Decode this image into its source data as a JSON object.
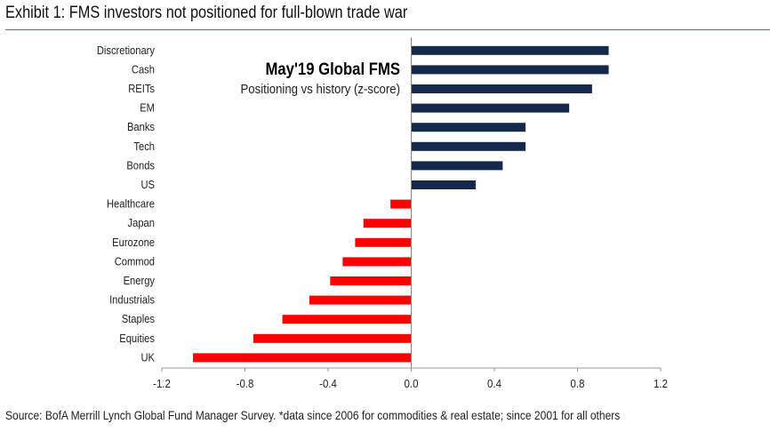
{
  "title": "Exhibit 1: FMS investors not positioned for full-blown trade war",
  "source": "Source: BofA Merrill Lynch Global Fund Manager Survey. *data since 2006 for commodities & real estate; since 2001 for all others",
  "chart_data": {
    "type": "bar",
    "orientation": "horizontal",
    "title": "May'19 Global FMS",
    "subtitle": "Positioning vs history (z-score)",
    "categories": [
      "Discretionary",
      "Cash",
      "REITs",
      "EM",
      "Banks",
      "Tech",
      "Bonds",
      "US",
      "Healthcare",
      "Japan",
      "Eurozone",
      "Commod",
      "Energy",
      "Industrials",
      "Staples",
      "Equities",
      "UK"
    ],
    "values": [
      0.95,
      0.95,
      0.87,
      0.76,
      0.55,
      0.55,
      0.44,
      0.31,
      -0.1,
      -0.23,
      -0.27,
      -0.33,
      -0.39,
      -0.49,
      -0.62,
      -0.76,
      -1.05
    ],
    "xlim": [
      -1.2,
      1.2
    ],
    "xticks": [
      "-1.2",
      "-0.8",
      "-0.4",
      "0.0",
      "0.4",
      "0.8",
      "1.2"
    ],
    "xtick_values": [
      -1.2,
      -0.8,
      -0.4,
      0,
      0.4,
      0.8,
      1.2
    ],
    "colors": {
      "positive": "#14284b",
      "negative": "#ff0000"
    },
    "grid": false
  }
}
